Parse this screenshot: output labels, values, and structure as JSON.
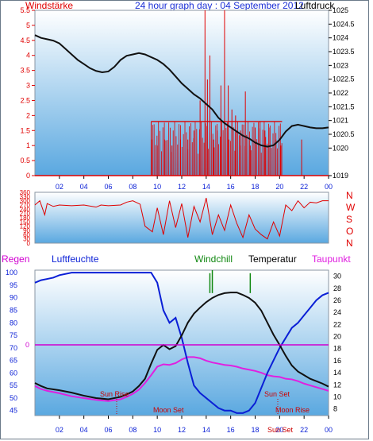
{
  "header": {
    "title": "24 hour graph day : 04 September 2012",
    "left_label": "Windstärke",
    "right_label": "Luftdruck"
  },
  "colors": {
    "wind": "#e00000",
    "pressure": "#111111",
    "humidity": "#0a1fd6",
    "temperature": "#111111",
    "dewpoint": "#e020e0",
    "windchill": "#118811",
    "rain": "#d000d0",
    "sky_top": "#ffffff",
    "sky_bottom": "#5aa8e0"
  },
  "x_ticks": [
    "02",
    "04",
    "06",
    "08",
    "10",
    "12",
    "14",
    "16",
    "18",
    "20",
    "22",
    "00"
  ],
  "chart_data": [
    {
      "type": "line",
      "title": "24 hour graph day : 04 September 2012",
      "x_unit": "hour",
      "xlim": [
        0,
        24
      ],
      "left_axis": {
        "label": "Windstärke",
        "ylim": [
          0,
          5.5
        ],
        "ticks": [
          "0",
          "0.5",
          "1",
          "1.5",
          "2",
          "2.5",
          "3",
          "3.5",
          "4",
          "4.5",
          "5",
          "5.5"
        ]
      },
      "right_axis": {
        "label": "Luftdruck",
        "ylim": [
          1019,
          1025
        ],
        "ticks": [
          "1019",
          "1020",
          "1020.5",
          "1021",
          "1021.5",
          "1022",
          "1022.5",
          "1023",
          "1023.5",
          "1024",
          "1024.5",
          "1025"
        ]
      },
      "series": [
        {
          "name": "Luftdruck",
          "axis": "right",
          "x": [
            0,
            0.5,
            1,
            1.5,
            2,
            2.5,
            3,
            3.5,
            4,
            4.5,
            5,
            5.5,
            6,
            6.5,
            7,
            7.5,
            8,
            8.5,
            9,
            9.5,
            10,
            10.5,
            11,
            11.5,
            12,
            12.5,
            13,
            13.5,
            14,
            14.5,
            15,
            15.5,
            16,
            16.5,
            17,
            17.5,
            18,
            18.5,
            19,
            19.5,
            20,
            20.5,
            21,
            21.5,
            22,
            22.5,
            23,
            23.5,
            24
          ],
          "y": [
            1024.1,
            1024.0,
            1023.95,
            1023.9,
            1023.8,
            1023.6,
            1023.4,
            1023.2,
            1023.05,
            1022.9,
            1022.8,
            1022.75,
            1022.78,
            1022.95,
            1023.2,
            1023.35,
            1023.4,
            1023.45,
            1023.4,
            1023.3,
            1023.2,
            1023.05,
            1022.85,
            1022.6,
            1022.35,
            1022.15,
            1021.95,
            1021.8,
            1021.6,
            1021.4,
            1021.1,
            1020.9,
            1020.75,
            1020.6,
            1020.45,
            1020.35,
            1020.2,
            1020.1,
            1020.05,
            1020.1,
            1020.3,
            1020.6,
            1020.8,
            1020.85,
            1020.8,
            1020.75,
            1020.72,
            1020.72,
            1020.75
          ]
        },
        {
          "name": "Windstärke",
          "axis": "left",
          "render": "bars",
          "x": [
            9.6,
            10.0,
            10.6,
            11.2,
            11.9,
            12.5,
            13.0,
            13.5,
            13.9,
            14.1,
            14.3,
            14.6,
            14.9,
            15.2,
            15.5,
            15.8,
            16.1,
            16.4,
            16.8,
            17.2,
            17.6,
            18.0,
            18.4,
            18.8,
            19.2,
            19.7,
            20.1,
            21.8
          ],
          "y": [
            1.2,
            1.0,
            1.2,
            1.0,
            1.2,
            1.2,
            1.5,
            2.5,
            5.5,
            3.2,
            4.0,
            1.2,
            1.5,
            3.0,
            5.5,
            3.0,
            2.2,
            2.0,
            1.5,
            2.8,
            1.0,
            1.6,
            1.8,
            1.5,
            1.6,
            1.2,
            1.0,
            1.2
          ]
        },
        {
          "name": "Windstärke (baseline)",
          "axis": "left",
          "render": "step",
          "x": [
            9.5,
            20.2
          ],
          "y": [
            1.8,
            1.8
          ]
        }
      ]
    },
    {
      "type": "line",
      "xlim": [
        0,
        24
      ],
      "left_axis": {
        "ylim": [
          0,
          360
        ],
        "ticks": [
          "0",
          "30",
          "60",
          "90",
          "120",
          "150",
          "180",
          "210",
          "240",
          "270",
          "300",
          "330",
          "360"
        ]
      },
      "right_axis": {
        "ticks": [
          "N",
          "W",
          "S",
          "O",
          "N"
        ]
      },
      "series": [
        {
          "axis": "left",
          "x": [
            0,
            0.4,
            0.8,
            1.0,
            1.5,
            2,
            3,
            4,
            5,
            5.4,
            6,
            7,
            7.5,
            8,
            8.6,
            9,
            9.6,
            10,
            10.5,
            11,
            11.5,
            12,
            12.5,
            13,
            13.5,
            14,
            14.5,
            15,
            15.5,
            16,
            16.5,
            17,
            17.5,
            18,
            18.5,
            19,
            19.5,
            20,
            20.5,
            21,
            21.5,
            22,
            22.5,
            23,
            23.5,
            24
          ],
          "y": [
            270,
            300,
            200,
            280,
            260,
            270,
            265,
            270,
            255,
            270,
            265,
            270,
            290,
            300,
            275,
            120,
            80,
            250,
            60,
            300,
            110,
            280,
            40,
            260,
            150,
            320,
            60,
            200,
            90,
            270,
            140,
            40,
            200,
            100,
            60,
            30,
            150,
            50,
            270,
            230,
            300,
            250,
            290,
            285,
            300,
            300
          ]
        }
      ]
    },
    {
      "type": "line",
      "xlim": [
        0,
        24
      ],
      "legend": [
        "Regen",
        "Luftfeuchte",
        "Windchill",
        "Temperatur",
        "Taupunkt"
      ],
      "left_axis": {
        "label": "Luftfeuchte",
        "ylim": [
          43,
          101
        ],
        "ticks": [
          "45",
          "50",
          "55",
          "60",
          "65",
          "70",
          "75",
          "80",
          "85",
          "90",
          "95",
          "100"
        ]
      },
      "right_axis": {
        "label": "Temperatur",
        "ylim": [
          6.9,
          31
        ],
        "ticks": [
          "8",
          "10",
          "12",
          "14",
          "16",
          "18",
          "20",
          "22",
          "24",
          "26",
          "28",
          "30"
        ]
      },
      "rain_axis": {
        "label": "Regen",
        "ticks": [
          "0"
        ],
        "value": 0
      },
      "annotations": [
        "Sun Rise",
        "Moon Set",
        "Sun Set",
        "Moon Rise"
      ],
      "series": [
        {
          "name": "Luftfeuchte",
          "axis": "left",
          "x": [
            0,
            0.5,
            1,
            1.5,
            2,
            3,
            4,
            5,
            6,
            7,
            7.5,
            8,
            8.5,
            9,
            9.5,
            10,
            10.5,
            11,
            11.5,
            12,
            12.5,
            13,
            13.5,
            14,
            14.5,
            15,
            15.5,
            16,
            16.5,
            17,
            17.5,
            18,
            18.5,
            19,
            19.5,
            20,
            20.5,
            21,
            21.5,
            22,
            22.5,
            23,
            23.5,
            24
          ],
          "y": [
            96,
            97,
            97.5,
            98,
            99,
            100,
            100,
            100,
            100,
            100,
            100,
            100,
            100,
            100,
            100,
            96,
            85,
            80,
            82,
            74,
            64,
            55,
            52,
            50,
            48,
            46,
            45,
            45,
            44,
            44,
            45,
            48,
            54,
            60,
            65,
            70,
            74,
            78,
            80,
            83,
            86,
            89,
            91,
            92
          ]
        },
        {
          "name": "Temperatur",
          "axis": "right",
          "x": [
            0,
            0.5,
            1,
            2,
            3,
            4,
            5,
            6,
            7,
            7.5,
            8,
            8.5,
            9,
            9.5,
            10,
            10.5,
            11,
            11.5,
            12,
            12.5,
            13,
            13.5,
            14,
            14.5,
            15,
            15.5,
            16,
            16.5,
            17,
            17.5,
            18,
            18.5,
            19,
            19.5,
            20,
            20.5,
            21,
            21.5,
            22,
            22.5,
            23,
            23.5,
            24
          ],
          "y": [
            12.3,
            11.8,
            11.4,
            11.1,
            10.7,
            10.2,
            9.8,
            9.6,
            10.0,
            10.4,
            10.9,
            11.8,
            13.0,
            15.5,
            17.8,
            18.6,
            17.9,
            18.4,
            20.2,
            22.3,
            23.8,
            24.8,
            25.7,
            26.4,
            26.9,
            27.2,
            27.3,
            27.3,
            26.9,
            26.4,
            25.6,
            24.3,
            22.3,
            20.3,
            18.6,
            16.8,
            15.2,
            14.2,
            13.6,
            13.0,
            12.6,
            12.2,
            11.7
          ]
        },
        {
          "name": "Taupunkt",
          "axis": "right",
          "x": [
            0,
            0.5,
            1,
            2,
            3,
            4,
            5,
            6,
            7,
            7.5,
            8,
            8.5,
            9,
            9.5,
            10,
            10.5,
            11,
            11.5,
            12,
            12.5,
            13,
            13.5,
            14,
            14.5,
            15,
            15.5,
            16,
            16.5,
            17,
            17.5,
            18,
            18.5,
            19,
            19.5,
            20,
            20.5,
            21,
            21.5,
            22,
            22.5,
            23,
            23.5,
            24
          ],
          "y": [
            11.8,
            11.3,
            11.0,
            10.6,
            10.1,
            9.8,
            9.5,
            9.3,
            9.6,
            10.0,
            10.5,
            11.2,
            12.3,
            13.6,
            15.0,
            15.4,
            15.3,
            15.6,
            16.2,
            16.6,
            16.6,
            16.4,
            16.0,
            15.7,
            15.5,
            15.3,
            15.2,
            15.0,
            14.7,
            14.5,
            14.3,
            14.0,
            13.6,
            13.4,
            13.3,
            13.0,
            12.9,
            12.6,
            12.2,
            11.9,
            11.6,
            11.3,
            11.0
          ]
        },
        {
          "name": "Windchill",
          "axis": "right",
          "render": "spikes",
          "x": [
            14.3,
            14.5,
            17.6
          ],
          "y": [
            30.5,
            31,
            30.5
          ]
        }
      ]
    }
  ]
}
